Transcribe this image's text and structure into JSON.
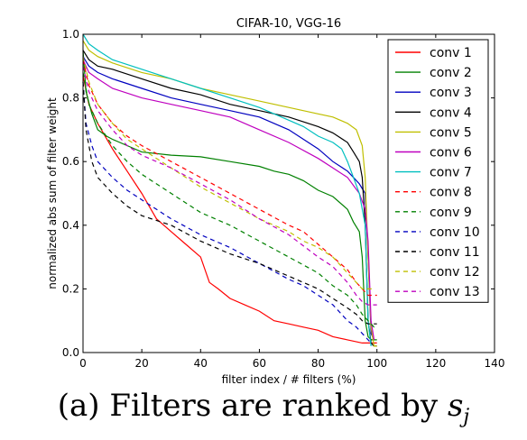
{
  "caption": {
    "prefix": "(a) Filters are ranked by",
    "variable": "s",
    "subscript": "j"
  },
  "chart_data": {
    "type": "line",
    "title": "CIFAR-10, VGG-16",
    "xlabel": "filter index / # filters (%)",
    "ylabel": "normalized abs sum of filter weight",
    "xlim": [
      0,
      140
    ],
    "ylim": [
      0.0,
      1.0
    ],
    "xticks": [
      "0",
      "20",
      "40",
      "60",
      "80",
      "100",
      "120",
      "140"
    ],
    "yticks": [
      "0.0",
      "0.2",
      "0.4",
      "0.6",
      "0.8",
      "1.0"
    ],
    "grid": false,
    "legend_position": "upper-right",
    "series": [
      {
        "name": "conv 1",
        "color": "#ff0000",
        "style": "solid",
        "x": [
          0,
          2,
          5,
          10,
          15,
          20,
          25,
          30,
          35,
          40,
          43,
          46,
          50,
          55,
          60,
          65,
          70,
          75,
          80,
          85,
          90,
          95,
          98,
          99,
          100
        ],
        "y": [
          0.87,
          0.78,
          0.72,
          0.64,
          0.57,
          0.5,
          0.42,
          0.38,
          0.34,
          0.3,
          0.22,
          0.2,
          0.17,
          0.15,
          0.13,
          0.1,
          0.09,
          0.08,
          0.07,
          0.05,
          0.04,
          0.03,
          0.03,
          0.03,
          0.03
        ]
      },
      {
        "name": "conv 2",
        "color": "#008000",
        "style": "solid",
        "x": [
          0,
          1,
          3,
          5,
          8,
          10,
          15,
          20,
          30,
          40,
          50,
          60,
          65,
          70,
          75,
          80,
          85,
          90,
          92,
          94,
          95,
          96,
          97,
          98,
          99,
          100
        ],
        "y": [
          0.95,
          0.82,
          0.75,
          0.7,
          0.68,
          0.67,
          0.65,
          0.63,
          0.62,
          0.615,
          0.6,
          0.585,
          0.57,
          0.56,
          0.54,
          0.51,
          0.49,
          0.45,
          0.41,
          0.38,
          0.3,
          0.1,
          0.05,
          0.04,
          0.04,
          0.04
        ]
      },
      {
        "name": "conv 3",
        "color": "#0000bf",
        "style": "solid",
        "x": [
          0,
          2,
          5,
          10,
          20,
          30,
          40,
          50,
          60,
          70,
          75,
          80,
          85,
          90,
          92,
          94,
          96,
          97,
          98,
          99
        ],
        "y": [
          0.93,
          0.9,
          0.88,
          0.86,
          0.83,
          0.8,
          0.78,
          0.76,
          0.74,
          0.7,
          0.67,
          0.64,
          0.6,
          0.57,
          0.55,
          0.53,
          0.5,
          0.3,
          0.06,
          0.04
        ]
      },
      {
        "name": "conv 4",
        "color": "#000000",
        "style": "solid",
        "x": [
          0,
          2,
          5,
          10,
          20,
          30,
          40,
          50,
          60,
          70,
          80,
          85,
          90,
          92,
          94,
          95,
          96,
          97,
          98,
          99,
          100
        ],
        "y": [
          0.95,
          0.92,
          0.9,
          0.89,
          0.86,
          0.83,
          0.81,
          0.78,
          0.76,
          0.74,
          0.71,
          0.69,
          0.66,
          0.63,
          0.6,
          0.55,
          0.4,
          0.1,
          0.03,
          0.02,
          0.02
        ]
      },
      {
        "name": "conv 5",
        "color": "#bfbf00",
        "style": "solid",
        "x": [
          0,
          2,
          5,
          10,
          20,
          30,
          40,
          50,
          60,
          70,
          80,
          85,
          90,
          93,
          95,
          96,
          97,
          98,
          99,
          100
        ],
        "y": [
          0.98,
          0.95,
          0.93,
          0.91,
          0.88,
          0.86,
          0.83,
          0.81,
          0.79,
          0.77,
          0.75,
          0.74,
          0.72,
          0.7,
          0.65,
          0.55,
          0.3,
          0.08,
          0.02,
          0.02
        ]
      },
      {
        "name": "conv 6",
        "color": "#bf00bf",
        "style": "solid",
        "x": [
          0,
          2,
          5,
          10,
          20,
          30,
          40,
          50,
          60,
          70,
          80,
          85,
          90,
          94,
          96,
          97,
          98,
          99
        ],
        "y": [
          0.92,
          0.88,
          0.86,
          0.83,
          0.8,
          0.78,
          0.76,
          0.74,
          0.7,
          0.66,
          0.61,
          0.58,
          0.55,
          0.5,
          0.45,
          0.35,
          0.1,
          0.04
        ]
      },
      {
        "name": "conv 7",
        "color": "#00bfbf",
        "style": "solid",
        "x": [
          0,
          2,
          5,
          10,
          20,
          30,
          40,
          50,
          60,
          70,
          75,
          80,
          85,
          88,
          90,
          92,
          94,
          96,
          97,
          98
        ],
        "y": [
          1.0,
          0.97,
          0.95,
          0.92,
          0.89,
          0.86,
          0.83,
          0.8,
          0.77,
          0.73,
          0.71,
          0.68,
          0.66,
          0.64,
          0.6,
          0.55,
          0.5,
          0.4,
          0.1,
          0.02
        ]
      },
      {
        "name": "conv 8",
        "color": "#ff0000",
        "style": "dashed",
        "x": [
          0,
          2,
          5,
          10,
          15,
          20,
          30,
          40,
          50,
          60,
          70,
          75,
          80,
          85,
          90,
          93,
          95,
          97,
          99,
          100
        ],
        "y": [
          0.92,
          0.84,
          0.78,
          0.72,
          0.68,
          0.65,
          0.6,
          0.55,
          0.5,
          0.45,
          0.4,
          0.38,
          0.34,
          0.3,
          0.26,
          0.22,
          0.2,
          0.18,
          0.18,
          0.18
        ]
      },
      {
        "name": "conv 9",
        "color": "#008000",
        "style": "dashed",
        "x": [
          0,
          2,
          5,
          10,
          15,
          20,
          30,
          40,
          50,
          60,
          70,
          80,
          85,
          90,
          93,
          95,
          97,
          99,
          100
        ],
        "y": [
          0.88,
          0.78,
          0.72,
          0.65,
          0.6,
          0.56,
          0.5,
          0.44,
          0.4,
          0.35,
          0.3,
          0.25,
          0.21,
          0.18,
          0.15,
          0.12,
          0.1,
          0.08,
          0.08
        ]
      },
      {
        "name": "conv 10",
        "color": "#0000bf",
        "style": "dashed",
        "x": [
          0,
          1,
          3,
          5,
          10,
          15,
          20,
          30,
          40,
          50,
          60,
          70,
          75,
          80,
          85,
          90,
          93,
          95,
          97,
          98
        ],
        "y": [
          0.85,
          0.72,
          0.65,
          0.6,
          0.55,
          0.51,
          0.48,
          0.42,
          0.37,
          0.33,
          0.28,
          0.23,
          0.21,
          0.18,
          0.15,
          0.1,
          0.08,
          0.06,
          0.04,
          0.03
        ]
      },
      {
        "name": "conv 11",
        "color": "#000000",
        "style": "dashed",
        "x": [
          0,
          1,
          3,
          5,
          10,
          15,
          20,
          30,
          40,
          50,
          60,
          70,
          80,
          85,
          90,
          93,
          95,
          97,
          99,
          100
        ],
        "y": [
          0.85,
          0.7,
          0.6,
          0.55,
          0.5,
          0.46,
          0.43,
          0.4,
          0.35,
          0.31,
          0.28,
          0.24,
          0.2,
          0.17,
          0.14,
          0.12,
          0.1,
          0.09,
          0.09,
          0.09
        ]
      },
      {
        "name": "conv 12",
        "color": "#bfbf00",
        "style": "dashed",
        "x": [
          0,
          2,
          5,
          10,
          15,
          20,
          30,
          40,
          50,
          60,
          70,
          75,
          80,
          85,
          88,
          90,
          93,
          95,
          97,
          99
        ],
        "y": [
          0.93,
          0.85,
          0.78,
          0.72,
          0.67,
          0.64,
          0.58,
          0.52,
          0.47,
          0.42,
          0.38,
          0.35,
          0.33,
          0.3,
          0.27,
          0.25,
          0.22,
          0.2,
          0.2,
          0.2
        ]
      },
      {
        "name": "conv 13",
        "color": "#bf00bf",
        "style": "dashed",
        "x": [
          0,
          2,
          5,
          10,
          15,
          20,
          30,
          40,
          50,
          60,
          70,
          80,
          85,
          90,
          93,
          95,
          97,
          99,
          100
        ],
        "y": [
          0.9,
          0.82,
          0.76,
          0.7,
          0.65,
          0.62,
          0.58,
          0.53,
          0.48,
          0.42,
          0.37,
          0.3,
          0.27,
          0.22,
          0.18,
          0.16,
          0.15,
          0.15,
          0.15
        ]
      }
    ]
  }
}
